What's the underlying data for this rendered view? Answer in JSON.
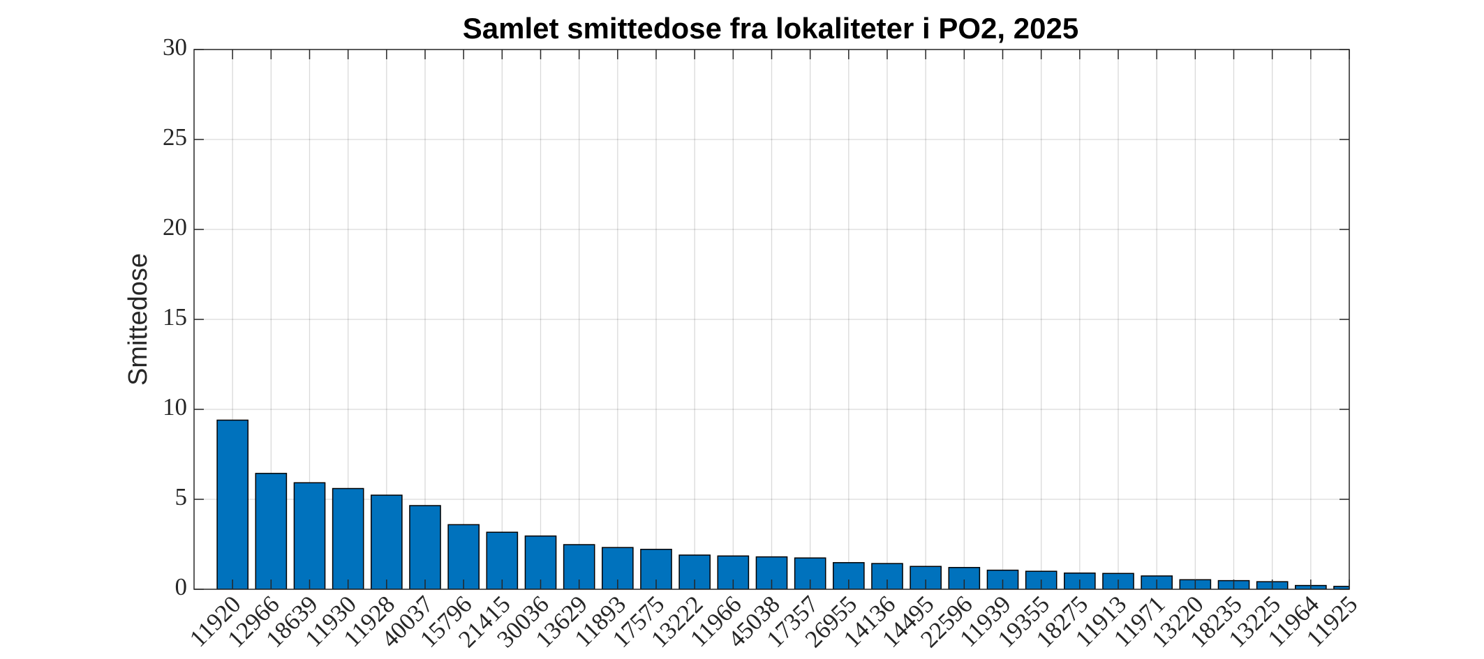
{
  "chart_data": {
    "type": "bar",
    "title": "Samlet smittedose fra lokaliteter i PO2, 2025",
    "ylabel": "Smittedose",
    "categories": [
      "11920",
      "12966",
      "18639",
      "11930",
      "11928",
      "40037",
      "15796",
      "21415",
      "30036",
      "13629",
      "11893",
      "17575",
      "13222",
      "11966",
      "45038",
      "17357",
      "26955",
      "14136",
      "14495",
      "22596",
      "11939",
      "19355",
      "18275",
      "11913",
      "11971",
      "13220",
      "18235",
      "13225",
      "11964",
      "11925"
    ],
    "values": [
      9.4,
      6.44,
      5.92,
      5.6,
      5.23,
      4.65,
      3.59,
      3.17,
      2.96,
      2.48,
      2.32,
      2.22,
      1.9,
      1.85,
      1.8,
      1.74,
      1.48,
      1.43,
      1.27,
      1.21,
      1.06,
      1.0,
      0.9,
      0.88,
      0.74,
      0.53,
      0.48,
      0.42,
      0.21,
      0.16
    ],
    "color": "#0072bd",
    "ylim": [
      0,
      30
    ],
    "yticks": [
      0,
      5,
      10,
      15,
      20,
      25,
      30
    ],
    "grid": true
  }
}
